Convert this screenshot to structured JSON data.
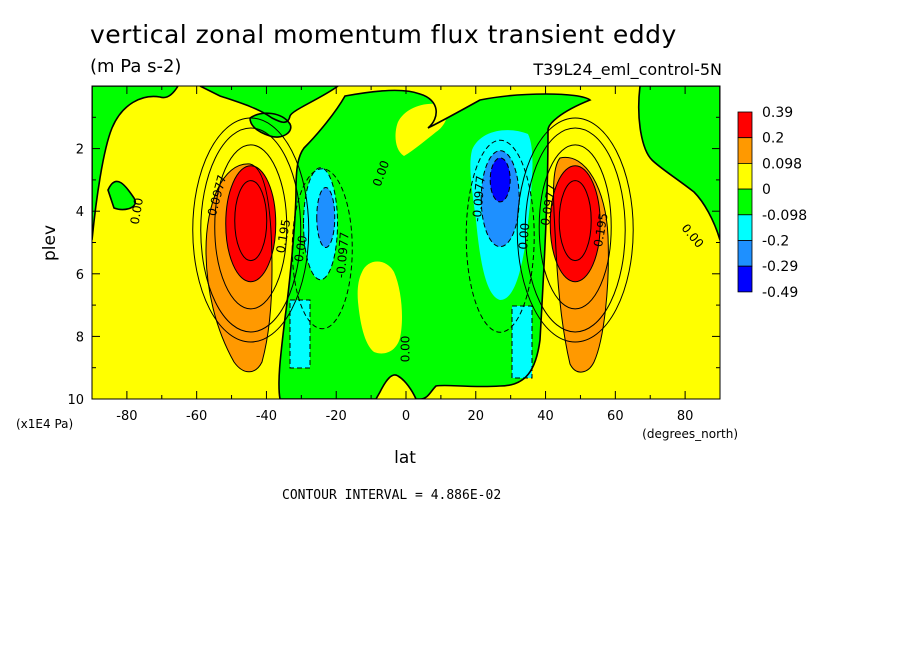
{
  "title": "vertical zonal momentum flux transient eddy",
  "units": "(m Pa s-2)",
  "dataset": "T39L24_eml_control-5N",
  "contour_interval_text": "CONTOUR INTERVAL = 4.886E-02",
  "chart_data": {
    "type": "heatmap",
    "title": "vertical zonal momentum flux transient eddy",
    "xlabel": "lat",
    "xunit": "(degrees_north)",
    "ylabel": "plev",
    "yunit": "(x1E4 Pa)",
    "xlim": [
      -90,
      90
    ],
    "ylim": [
      10,
      0
    ],
    "xticks": [
      -80,
      -60,
      -40,
      -20,
      0,
      20,
      40,
      60,
      80
    ],
    "yticks": [
      2,
      4,
      6,
      8,
      10
    ],
    "legend": {
      "placement": "right",
      "levels": [
        "0.39",
        "0.2",
        "0.098",
        "0",
        "-0.098",
        "-0.2",
        "-0.29",
        "-0.49"
      ],
      "colors": [
        "#ff0000",
        "#ff9900",
        "#ffff00",
        "#00ff00",
        "#00ffff",
        "#1e90ff",
        "#0000ff"
      ]
    },
    "features": [
      {
        "kind": "max",
        "lat": -45,
        "plev": 4.2,
        "value": 0.39
      },
      {
        "kind": "max",
        "lat": 48,
        "plev": 4.2,
        "value": 0.39
      },
      {
        "kind": "min",
        "lat": -24,
        "plev": 4.2,
        "value": -0.2
      },
      {
        "kind": "min",
        "lat": 27,
        "plev": 3.0,
        "value": -0.29
      }
    ],
    "contour_labels": [
      {
        "text": "0.00",
        "lat": -77,
        "plev": 4.0,
        "angle": -80
      },
      {
        "text": "0.0977",
        "lat": -54,
        "plev": 3.5,
        "angle": -75
      },
      {
        "text": "0.195",
        "lat": -35,
        "plev": 4.8,
        "angle": -80
      },
      {
        "text": "0.00",
        "lat": -30,
        "plev": 5.2,
        "angle": -80
      },
      {
        "text": "-0.0977",
        "lat": -18,
        "plev": 5.4,
        "angle": -85
      },
      {
        "text": "0.00",
        "lat": -7,
        "plev": 2.8,
        "angle": -70
      },
      {
        "text": "0.00",
        "lat": 0,
        "plev": 8.4,
        "angle": -90
      },
      {
        "text": "-0.0977",
        "lat": 21,
        "plev": 3.6,
        "angle": -85
      },
      {
        "text": "0.00",
        "lat": 34,
        "plev": 4.8,
        "angle": -85
      },
      {
        "text": "0.0977",
        "lat": 41,
        "plev": 3.8,
        "angle": -80
      },
      {
        "text": "0.195",
        "lat": 56,
        "plev": 4.6,
        "angle": -80
      },
      {
        "text": "0.00",
        "lat": 82,
        "plev": 4.8,
        "angle": 50
      }
    ]
  }
}
